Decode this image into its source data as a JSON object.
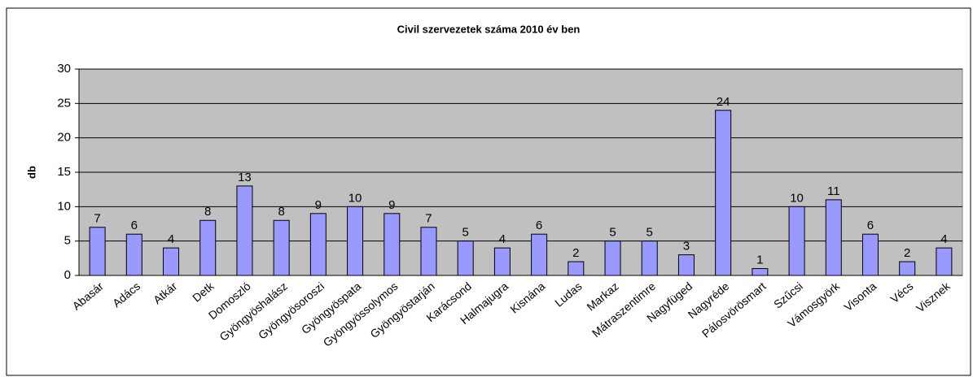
{
  "chart_data": {
    "type": "bar",
    "title": "Civil szervezetek száma 2010 év ben",
    "y_label": "db",
    "categories": [
      "Abasár",
      "Adács",
      "Atkár",
      "Detk",
      "Domoszló",
      "Gyöngyöshalász",
      "Gyöngyösoroszi",
      "Gyöngyöspata",
      "Gyöngyössolymos",
      "Gyöngyöstarján",
      "Karácsond",
      "Halmajugra",
      "Kisnána",
      "Ludas",
      "Markaz",
      "Mátraszentimre",
      "Nagyfüged",
      "Nagyréde",
      "Pálosvörösmart",
      "Szűcsi",
      "Vámosgyörk",
      "Visonta",
      "Vécs",
      "Visznek"
    ],
    "values": [
      7,
      6,
      4,
      8,
      13,
      8,
      9,
      10,
      9,
      7,
      5,
      4,
      6,
      2,
      5,
      5,
      3,
      24,
      1,
      10,
      11,
      6,
      2,
      4
    ],
    "color": "#9999ff",
    "ylim": [
      0,
      30
    ],
    "yticks": [
      0,
      5,
      10,
      15,
      20,
      25,
      30
    ],
    "grid": true
  }
}
